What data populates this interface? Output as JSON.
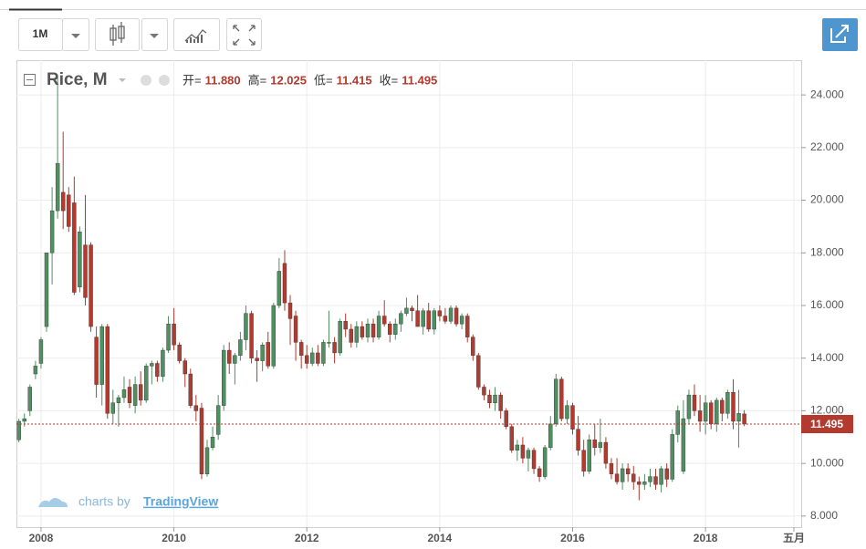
{
  "toolbar": {
    "interval": "1M"
  },
  "watermark": {
    "prefix": "charts by",
    "brand": "TradingView"
  },
  "chart_data": {
    "type": "candlestick",
    "legend_labels": [
      "开=",
      "高=",
      "低=",
      "收="
    ],
    "legend_value_labels": [
      "11.880",
      "12.025",
      "11.415",
      "11.495"
    ],
    "last_price": 11.495,
    "grid": true,
    "xlim": [
      2007.63,
      2019.44
    ],
    "xticks": [
      2008,
      2010,
      2012,
      2014,
      2016,
      2018,
      {
        "value": 2019.33,
        "label": "五月"
      }
    ],
    "ylim": [
      7.58,
      25.32
    ],
    "yticks": [
      {
        "value": 8,
        "label": "8.000"
      },
      {
        "value": 10,
        "label": "10.000"
      },
      {
        "value": 12,
        "label": "12.000"
      },
      {
        "value": 14,
        "label": "14.000"
      },
      {
        "value": 16,
        "label": "16.000"
      },
      {
        "value": 18,
        "label": "18.000"
      },
      {
        "value": 20,
        "label": "20.000"
      },
      {
        "value": 22,
        "label": "22.000"
      },
      {
        "value": 24,
        "label": "24.000"
      }
    ],
    "x": [
      2007.667,
      2007.75,
      2007.833,
      2007.917,
      2008,
      2008.083,
      2008.167,
      2008.25,
      2008.333,
      2008.417,
      2008.5,
      2008.583,
      2008.667,
      2008.75,
      2008.833,
      2008.917,
      2009,
      2009.083,
      2009.167,
      2009.25,
      2009.333,
      2009.417,
      2009.5,
      2009.583,
      2009.667,
      2009.75,
      2009.833,
      2009.917,
      2010,
      2010.083,
      2010.167,
      2010.25,
      2010.333,
      2010.417,
      2010.5,
      2010.583,
      2010.667,
      2010.75,
      2010.833,
      2010.917,
      2011,
      2011.083,
      2011.167,
      2011.25,
      2011.333,
      2011.417,
      2011.5,
      2011.583,
      2011.667,
      2011.75,
      2011.833,
      2011.917,
      2012,
      2012.083,
      2012.167,
      2012.25,
      2012.333,
      2012.417,
      2012.5,
      2012.583,
      2012.667,
      2012.75,
      2012.833,
      2012.917,
      2013,
      2013.083,
      2013.167,
      2013.25,
      2013.333,
      2013.417,
      2013.5,
      2013.583,
      2013.667,
      2013.75,
      2013.833,
      2013.917,
      2014,
      2014.083,
      2014.167,
      2014.25,
      2014.333,
      2014.417,
      2014.5,
      2014.583,
      2014.667,
      2014.75,
      2014.833,
      2014.917,
      2015,
      2015.083,
      2015.167,
      2015.25,
      2015.333,
      2015.417,
      2015.5,
      2015.583,
      2015.667,
      2015.75,
      2015.833,
      2015.917,
      2016,
      2016.083,
      2016.167,
      2016.25,
      2016.333,
      2016.417,
      2016.5,
      2016.583,
      2016.667,
      2016.75,
      2016.833,
      2016.917,
      2017,
      2017.083,
      2017.167,
      2017.25,
      2017.333,
      2017.417,
      2017.5,
      2017.583,
      2017.667,
      2017.75,
      2017.833,
      2017.917,
      2018,
      2018.083,
      2018.167,
      2018.25,
      2018.333,
      2018.417,
      2018.5,
      2018.583
    ],
    "series": [
      {
        "name": "Rice, M",
        "up_color": "#4f8f62",
        "down_color": "#b23a2f",
        "open": [
          10.9,
          11.6,
          12.0,
          13.4,
          13.8,
          15.2,
          18.0,
          19.6,
          20.3,
          20.2,
          19.9,
          16.7,
          18.3,
          18.3,
          14.8,
          13.0,
          15.2,
          11.9,
          12.3,
          12.5,
          12.9,
          12.2,
          13.0,
          12.4,
          13.7,
          13.8,
          13.3,
          14.3,
          15.3,
          14.5,
          13.9,
          13.4,
          12.2,
          12.1,
          9.6,
          10.6,
          11.1,
          12.2,
          14.3,
          13.8,
          14.1,
          14.7,
          15.7,
          14.0,
          13.9,
          14.6,
          13.7,
          16.0,
          17.6,
          16.1,
          15.6,
          14.6,
          14.1,
          13.8,
          14.2,
          13.8,
          14.6,
          14.6,
          14.2,
          15.4,
          15.1,
          14.6,
          15.2,
          14.8,
          15.3,
          14.8,
          15.6,
          15.3,
          14.9,
          15.3,
          15.7,
          15.9,
          15.8,
          15.2,
          15.8,
          15.1,
          15.8,
          15.6,
          15.4,
          15.9,
          15.3,
          15.6,
          14.8,
          14.1,
          12.9,
          12.6,
          12.3,
          12.6,
          12.0,
          11.4,
          10.5,
          10.7,
          10.2,
          10.5,
          9.8,
          9.5,
          10.6,
          11.5,
          13.2,
          11.7,
          12.2,
          11.3,
          10.5,
          9.7,
          10.9,
          10.6,
          10.8,
          10.0,
          9.6,
          9.3,
          9.8,
          9.6,
          9.3,
          9.2,
          9.3,
          9.5,
          9.2,
          9.8,
          9.4,
          11.1,
          9.7,
          11.7,
          12.6,
          12.0,
          11.6,
          12.3,
          11.5,
          12.4,
          11.9,
          12.7,
          11.6,
          11.88
        ],
        "high": [
          11.7,
          11.9,
          13.0,
          13.9,
          14.8,
          18.0,
          20.5,
          24.7,
          22.6,
          20.5,
          20.9,
          19.0,
          20.2,
          18.4,
          15.2,
          15.3,
          15.3,
          12.8,
          12.6,
          13.3,
          13.2,
          13.3,
          13.5,
          13.8,
          13.9,
          13.9,
          14.4,
          15.6,
          15.9,
          14.6,
          14.0,
          13.6,
          12.6,
          12.3,
          10.9,
          11.4,
          12.6,
          14.5,
          14.6,
          14.2,
          15.0,
          16.0,
          15.8,
          14.3,
          14.6,
          15.0,
          16.1,
          17.8,
          18.1,
          16.4,
          15.8,
          14.7,
          14.5,
          14.4,
          14.5,
          14.7,
          15.8,
          14.8,
          15.5,
          15.7,
          15.3,
          15.4,
          15.4,
          15.5,
          15.5,
          15.8,
          16.2,
          15.4,
          15.5,
          15.8,
          16.3,
          16.0,
          16.4,
          15.9,
          16.1,
          15.9,
          16.0,
          15.9,
          16.0,
          16.0,
          15.7,
          15.7,
          14.9,
          14.2,
          13.0,
          12.8,
          12.9,
          12.7,
          12.1,
          11.5,
          10.9,
          11.0,
          10.6,
          10.6,
          9.9,
          10.7,
          11.8,
          13.4,
          13.3,
          12.4,
          12.3,
          11.8,
          10.9,
          11.1,
          11.5,
          11.7,
          11.0,
          10.2,
          10.2,
          10.0,
          10.0,
          9.9,
          9.5,
          9.6,
          9.8,
          9.8,
          9.9,
          10.0,
          11.3,
          12.2,
          12.4,
          12.8,
          13.0,
          12.6,
          12.6,
          12.4,
          12.5,
          12.5,
          12.8,
          13.2,
          12.8,
          12.025
        ],
        "low": [
          10.8,
          11.4,
          11.8,
          13.2,
          13.6,
          15.0,
          16.8,
          19.3,
          18.9,
          18.8,
          16.4,
          16.5,
          16.0,
          15.0,
          12.5,
          12.2,
          11.7,
          11.5,
          11.4,
          12.3,
          12.1,
          11.9,
          12.2,
          12.3,
          13.0,
          13.1,
          13.1,
          14.2,
          14.3,
          13.8,
          12.9,
          12.1,
          11.6,
          9.4,
          9.5,
          10.5,
          10.9,
          12.0,
          13.4,
          13.0,
          13.9,
          14.3,
          13.8,
          13.1,
          13.5,
          13.6,
          13.6,
          15.9,
          15.8,
          14.5,
          13.9,
          13.6,
          13.6,
          13.7,
          13.7,
          13.7,
          14.4,
          13.8,
          14.1,
          14.8,
          14.4,
          14.4,
          14.7,
          14.6,
          14.6,
          14.7,
          15.2,
          14.6,
          14.7,
          15.0,
          15.6,
          15.4,
          15.2,
          14.9,
          15.0,
          14.9,
          15.4,
          15.3,
          15.3,
          15.2,
          15.1,
          14.6,
          13.9,
          12.8,
          12.4,
          12.1,
          12.0,
          11.7,
          11.3,
          10.4,
          10.1,
          10.0,
          9.7,
          9.6,
          9.3,
          9.4,
          10.5,
          11.4,
          11.6,
          11.5,
          11.1,
          10.3,
          9.5,
          9.6,
          10.3,
          10.4,
          9.8,
          9.4,
          9.2,
          9.0,
          9.3,
          9.0,
          8.6,
          9.0,
          9.1,
          9.0,
          8.9,
          9.1,
          9.3,
          10.8,
          9.6,
          11.5,
          11.8,
          11.2,
          11.1,
          11.3,
          11.2,
          11.6,
          11.7,
          11.3,
          10.6,
          11.415
        ],
        "close": [
          11.6,
          11.7,
          12.9,
          13.7,
          14.7,
          18.0,
          19.6,
          21.4,
          19.6,
          19.0,
          16.5,
          18.8,
          16.3,
          15.2,
          13.0,
          15.2,
          11.9,
          12.3,
          12.5,
          12.8,
          12.3,
          13.0,
          12.4,
          13.7,
          13.8,
          13.3,
          14.3,
          15.3,
          14.5,
          13.9,
          13.4,
          12.2,
          12.0,
          9.6,
          10.6,
          11.0,
          12.2,
          14.3,
          13.8,
          14.1,
          14.7,
          15.7,
          14.0,
          13.9,
          14.5,
          13.7,
          16.0,
          17.3,
          16.1,
          15.5,
          14.6,
          14.1,
          13.8,
          14.2,
          13.8,
          14.6,
          14.6,
          14.2,
          15.4,
          15.1,
          14.6,
          15.2,
          14.8,
          15.3,
          14.8,
          15.6,
          15.3,
          14.9,
          15.3,
          15.7,
          15.9,
          15.8,
          15.2,
          15.8,
          15.1,
          15.8,
          15.6,
          15.4,
          15.9,
          15.3,
          15.6,
          14.8,
          14.1,
          12.9,
          12.6,
          12.3,
          12.6,
          12.0,
          11.4,
          10.5,
          10.7,
          10.2,
          10.5,
          9.8,
          9.5,
          10.6,
          11.5,
          13.2,
          11.7,
          12.2,
          11.3,
          10.5,
          9.7,
          10.9,
          10.6,
          10.8,
          10.0,
          9.6,
          9.3,
          9.8,
          9.6,
          9.3,
          9.2,
          9.3,
          9.5,
          9.2,
          9.8,
          9.4,
          11.1,
          12.0,
          11.7,
          12.6,
          12.0,
          11.6,
          12.3,
          11.5,
          12.4,
          11.9,
          12.7,
          11.6,
          11.9,
          11.495
        ]
      }
    ]
  }
}
